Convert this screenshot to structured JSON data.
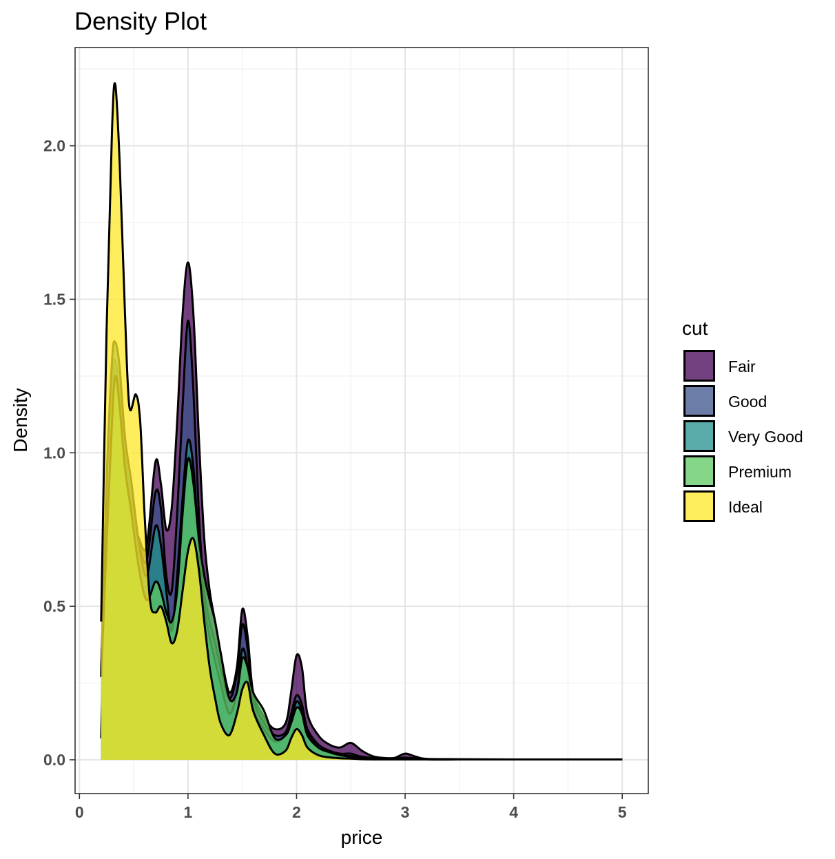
{
  "chart_data": {
    "type": "area",
    "title": "Density Plot",
    "xlabel": "price",
    "ylabel": "Density",
    "xlim": [
      -0.04,
      5.24
    ],
    "ylim": [
      -0.11,
      2.32
    ],
    "x_ticks": [
      0,
      1,
      2,
      3,
      4,
      5
    ],
    "x_tick_labels": [
      "0",
      "1",
      "2",
      "3",
      "4",
      "5"
    ],
    "y_ticks": [
      0.0,
      0.5,
      1.0,
      1.5,
      2.0
    ],
    "y_tick_labels": [
      "0.0",
      "0.5",
      "1.0",
      "1.5",
      "2.0"
    ],
    "grid": true,
    "legend": {
      "title": "cut",
      "position": "right"
    },
    "colors": {
      "Fair": "#440154",
      "Good": "#3B528B",
      "Very Good": "#21908C",
      "Premium": "#5DC863",
      "Ideal": "#FDE725",
      "outline": "#000000",
      "fill_alpha": 0.75
    },
    "series": [
      {
        "name": "Fair",
        "points": [
          [
            0.2,
            0.07
          ],
          [
            0.25,
            0.8
          ],
          [
            0.3,
            1.2
          ],
          [
            0.33,
            1.29
          ],
          [
            0.37,
            1.2
          ],
          [
            0.42,
            0.98
          ],
          [
            0.48,
            0.82
          ],
          [
            0.55,
            0.72
          ],
          [
            0.62,
            0.7
          ],
          [
            0.7,
            0.97
          ],
          [
            0.75,
            0.9
          ],
          [
            0.8,
            0.75
          ],
          [
            0.85,
            0.82
          ],
          [
            0.9,
            1.1
          ],
          [
            0.95,
            1.45
          ],
          [
            1.0,
            1.62
          ],
          [
            1.05,
            1.45
          ],
          [
            1.1,
            1.05
          ],
          [
            1.15,
            0.72
          ],
          [
            1.2,
            0.55
          ],
          [
            1.25,
            0.45
          ],
          [
            1.3,
            0.35
          ],
          [
            1.38,
            0.22
          ],
          [
            1.45,
            0.3
          ],
          [
            1.5,
            0.49
          ],
          [
            1.55,
            0.4
          ],
          [
            1.6,
            0.22
          ],
          [
            1.7,
            0.14
          ],
          [
            1.8,
            0.1
          ],
          [
            1.9,
            0.12
          ],
          [
            1.95,
            0.22
          ],
          [
            2.0,
            0.34
          ],
          [
            2.05,
            0.3
          ],
          [
            2.1,
            0.15
          ],
          [
            2.2,
            0.08
          ],
          [
            2.3,
            0.05
          ],
          [
            2.4,
            0.04
          ],
          [
            2.5,
            0.055
          ],
          [
            2.6,
            0.03
          ],
          [
            2.7,
            0.012
          ],
          [
            2.8,
            0.006
          ],
          [
            2.9,
            0.006
          ],
          [
            3.0,
            0.02
          ],
          [
            3.1,
            0.01
          ],
          [
            3.2,
            0.003
          ],
          [
            3.5,
            0.002
          ],
          [
            4.0,
            0.001
          ],
          [
            4.5,
            0.001
          ],
          [
            5.0,
            0.001
          ]
        ]
      },
      {
        "name": "Good",
        "points": [
          [
            0.2,
            0.27
          ],
          [
            0.25,
            0.9
          ],
          [
            0.3,
            1.25
          ],
          [
            0.33,
            1.3
          ],
          [
            0.37,
            1.2
          ],
          [
            0.42,
            1.0
          ],
          [
            0.48,
            0.85
          ],
          [
            0.55,
            0.7
          ],
          [
            0.62,
            0.65
          ],
          [
            0.7,
            0.87
          ],
          [
            0.75,
            0.82
          ],
          [
            0.8,
            0.6
          ],
          [
            0.85,
            0.55
          ],
          [
            0.9,
            0.8
          ],
          [
            0.95,
            1.15
          ],
          [
            1.0,
            1.43
          ],
          [
            1.05,
            1.2
          ],
          [
            1.1,
            0.8
          ],
          [
            1.15,
            0.55
          ],
          [
            1.2,
            0.45
          ],
          [
            1.25,
            0.38
          ],
          [
            1.3,
            0.3
          ],
          [
            1.38,
            0.2
          ],
          [
            1.45,
            0.28
          ],
          [
            1.5,
            0.44
          ],
          [
            1.55,
            0.36
          ],
          [
            1.6,
            0.2
          ],
          [
            1.7,
            0.12
          ],
          [
            1.8,
            0.08
          ],
          [
            1.9,
            0.09
          ],
          [
            1.95,
            0.15
          ],
          [
            2.0,
            0.21
          ],
          [
            2.05,
            0.18
          ],
          [
            2.1,
            0.1
          ],
          [
            2.2,
            0.05
          ],
          [
            2.3,
            0.03
          ],
          [
            2.4,
            0.02
          ],
          [
            2.5,
            0.02
          ],
          [
            2.6,
            0.01
          ],
          [
            2.8,
            0.004
          ],
          [
            3.0,
            0.007
          ],
          [
            3.2,
            0.002
          ],
          [
            3.5,
            0.001
          ],
          [
            4.0,
            0.001
          ],
          [
            5.0,
            0.001
          ]
        ]
      },
      {
        "name": "Very Good",
        "points": [
          [
            0.2,
            0.28
          ],
          [
            0.25,
            0.9
          ],
          [
            0.3,
            1.3
          ],
          [
            0.33,
            1.36
          ],
          [
            0.37,
            1.28
          ],
          [
            0.42,
            1.05
          ],
          [
            0.48,
            0.9
          ],
          [
            0.55,
            0.7
          ],
          [
            0.62,
            0.6
          ],
          [
            0.7,
            0.76
          ],
          [
            0.75,
            0.7
          ],
          [
            0.8,
            0.55
          ],
          [
            0.85,
            0.42
          ],
          [
            0.9,
            0.6
          ],
          [
            0.95,
            0.85
          ],
          [
            1.0,
            1.04
          ],
          [
            1.05,
            0.95
          ],
          [
            1.1,
            0.7
          ],
          [
            1.15,
            0.5
          ],
          [
            1.2,
            0.4
          ],
          [
            1.25,
            0.32
          ],
          [
            1.3,
            0.25
          ],
          [
            1.38,
            0.15
          ],
          [
            1.45,
            0.22
          ],
          [
            1.5,
            0.36
          ],
          [
            1.55,
            0.3
          ],
          [
            1.6,
            0.17
          ],
          [
            1.7,
            0.1
          ],
          [
            1.8,
            0.06
          ],
          [
            1.9,
            0.08
          ],
          [
            1.95,
            0.13
          ],
          [
            2.0,
            0.19
          ],
          [
            2.05,
            0.16
          ],
          [
            2.1,
            0.09
          ],
          [
            2.2,
            0.04
          ],
          [
            2.3,
            0.025
          ],
          [
            2.4,
            0.015
          ],
          [
            2.5,
            0.012
          ],
          [
            2.6,
            0.006
          ],
          [
            2.8,
            0.003
          ],
          [
            3.0,
            0.004
          ],
          [
            3.2,
            0.001
          ],
          [
            3.5,
            0.001
          ],
          [
            4.0,
            0.001
          ],
          [
            5.0,
            0.001
          ]
        ]
      },
      {
        "name": "Premium",
        "points": [
          [
            0.2,
            0.27
          ],
          [
            0.25,
            0.7
          ],
          [
            0.3,
            1.1
          ],
          [
            0.33,
            1.25
          ],
          [
            0.37,
            1.15
          ],
          [
            0.42,
            0.95
          ],
          [
            0.48,
            0.8
          ],
          [
            0.55,
            0.62
          ],
          [
            0.62,
            0.52
          ],
          [
            0.7,
            0.58
          ],
          [
            0.75,
            0.55
          ],
          [
            0.8,
            0.48
          ],
          [
            0.85,
            0.45
          ],
          [
            0.9,
            0.55
          ],
          [
            0.95,
            0.8
          ],
          [
            1.0,
            0.98
          ],
          [
            1.05,
            0.9
          ],
          [
            1.1,
            0.72
          ],
          [
            1.15,
            0.6
          ],
          [
            1.2,
            0.52
          ],
          [
            1.25,
            0.45
          ],
          [
            1.3,
            0.35
          ],
          [
            1.38,
            0.2
          ],
          [
            1.45,
            0.22
          ],
          [
            1.5,
            0.33
          ],
          [
            1.55,
            0.3
          ],
          [
            1.6,
            0.22
          ],
          [
            1.7,
            0.16
          ],
          [
            1.8,
            0.07
          ],
          [
            1.9,
            0.08
          ],
          [
            1.95,
            0.12
          ],
          [
            2.0,
            0.17
          ],
          [
            2.05,
            0.15
          ],
          [
            2.1,
            0.08
          ],
          [
            2.2,
            0.04
          ],
          [
            2.3,
            0.025
          ],
          [
            2.4,
            0.015
          ],
          [
            2.5,
            0.01
          ],
          [
            2.6,
            0.005
          ],
          [
            2.8,
            0.003
          ],
          [
            3.0,
            0.003
          ],
          [
            3.2,
            0.001
          ],
          [
            3.5,
            0.001
          ],
          [
            4.0,
            0.001
          ],
          [
            5.0,
            0.001
          ]
        ]
      },
      {
        "name": "Ideal",
        "points": [
          [
            0.2,
            0.45
          ],
          [
            0.25,
            1.4
          ],
          [
            0.3,
            2.05
          ],
          [
            0.33,
            2.2
          ],
          [
            0.37,
            1.95
          ],
          [
            0.42,
            1.45
          ],
          [
            0.46,
            1.15
          ],
          [
            0.52,
            1.19
          ],
          [
            0.56,
            1.1
          ],
          [
            0.6,
            0.8
          ],
          [
            0.65,
            0.52
          ],
          [
            0.7,
            0.48
          ],
          [
            0.75,
            0.5
          ],
          [
            0.8,
            0.45
          ],
          [
            0.85,
            0.38
          ],
          [
            0.9,
            0.42
          ],
          [
            0.95,
            0.55
          ],
          [
            1.0,
            0.68
          ],
          [
            1.05,
            0.72
          ],
          [
            1.1,
            0.62
          ],
          [
            1.15,
            0.45
          ],
          [
            1.2,
            0.3
          ],
          [
            1.25,
            0.2
          ],
          [
            1.3,
            0.12
          ],
          [
            1.38,
            0.08
          ],
          [
            1.45,
            0.15
          ],
          [
            1.5,
            0.23
          ],
          [
            1.55,
            0.25
          ],
          [
            1.6,
            0.16
          ],
          [
            1.7,
            0.08
          ],
          [
            1.8,
            0.02
          ],
          [
            1.9,
            0.03
          ],
          [
            1.95,
            0.07
          ],
          [
            2.0,
            0.1
          ],
          [
            2.05,
            0.08
          ],
          [
            2.1,
            0.04
          ],
          [
            2.2,
            0.015
          ],
          [
            2.3,
            0.008
          ],
          [
            2.4,
            0.005
          ],
          [
            2.5,
            0.004
          ],
          [
            2.6,
            0.002
          ],
          [
            2.8,
            0.001
          ],
          [
            3.0,
            0.001
          ],
          [
            3.5,
            0.001
          ],
          [
            4.0,
            0.001
          ],
          [
            5.0,
            0.001
          ]
        ]
      }
    ]
  }
}
